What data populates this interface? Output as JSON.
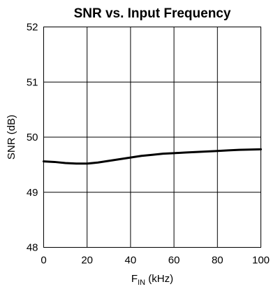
{
  "chart_data": {
    "type": "line",
    "title": "SNR vs. Input Frequency",
    "xlabel": {
      "base": "F",
      "subscript": "IN",
      "suffix": " (kHz)"
    },
    "ylabel": "SNR (dB)",
    "xlim": [
      0,
      100
    ],
    "ylim": [
      48,
      52
    ],
    "x_ticks": [
      "0",
      "20",
      "40",
      "60",
      "80",
      "100"
    ],
    "y_ticks": [
      "48",
      "49",
      "50",
      "51",
      "52"
    ],
    "grid": true,
    "line_color": "#000000",
    "series": [
      {
        "x": [
          0,
          5,
          10,
          15,
          20,
          25,
          30,
          35,
          40,
          45,
          50,
          55,
          60,
          65,
          70,
          75,
          80,
          85,
          90,
          95,
          100
        ],
        "values": [
          49.56,
          49.55,
          49.53,
          49.52,
          49.52,
          49.54,
          49.57,
          49.6,
          49.63,
          49.66,
          49.68,
          49.7,
          49.71,
          49.72,
          49.73,
          49.74,
          49.75,
          49.76,
          49.77,
          49.775,
          49.78
        ]
      }
    ]
  }
}
